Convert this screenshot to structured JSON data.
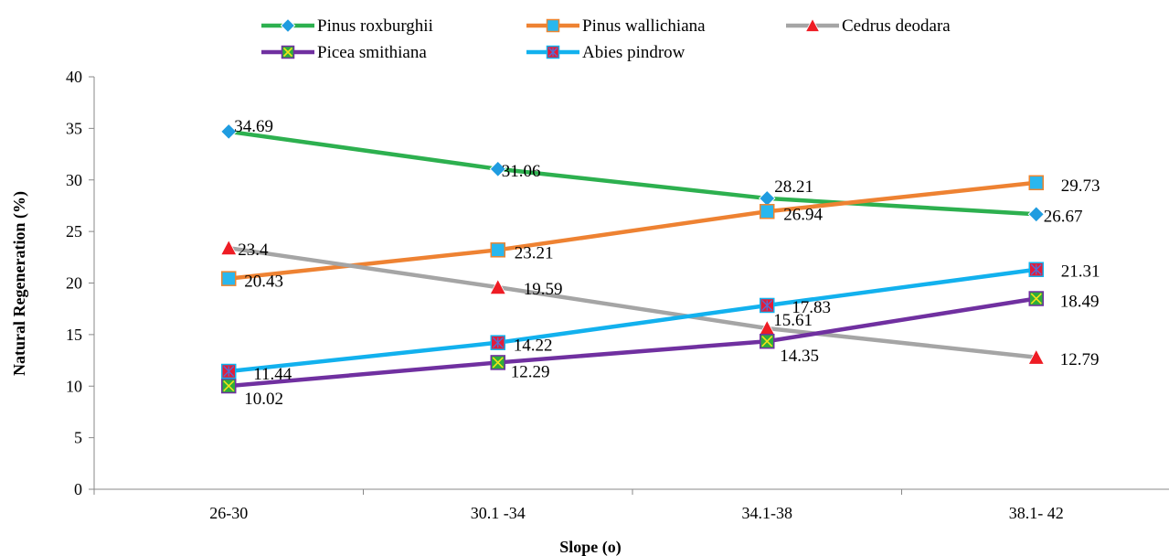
{
  "chart_data": {
    "type": "line",
    "xlabel": "Slope (o)",
    "ylabel": "Natural Regeneration (%)",
    "categories": [
      "26-30",
      "30.1 -34",
      "34.1-38",
      "38.1- 42"
    ],
    "ylim": [
      0,
      40
    ],
    "yticks": [
      0,
      5,
      10,
      15,
      20,
      25,
      30,
      35,
      40
    ],
    "grid": false,
    "legend": "top-center",
    "series": [
      {
        "name": "Pinus roxburghii",
        "values": [
          34.69,
          31.06,
          28.21,
          26.67
        ],
        "line_color": "#2db04f",
        "marker": "diamond",
        "marker_color": "#1f9ce0"
      },
      {
        "name": "Pinus wallichiana",
        "values": [
          20.43,
          23.21,
          26.94,
          29.73
        ],
        "line_color": "#ee8232",
        "marker": "square",
        "marker_color": "#29b7ee"
      },
      {
        "name": "Cedrus deodara",
        "values": [
          23.4,
          19.59,
          15.61,
          12.79
        ],
        "line_color": "#a5a5a5",
        "marker": "triangle",
        "marker_color": "#ee1c24"
      },
      {
        "name": "Picea smithiana",
        "values": [
          10.02,
          12.29,
          14.35,
          18.49
        ],
        "line_color": "#7030a0",
        "marker": "square-x",
        "marker_color": "#2dad3a"
      },
      {
        "name": "Abies pindrow",
        "values": [
          11.44,
          14.22,
          17.83,
          21.31
        ],
        "line_color": "#12b1ee",
        "marker": "square-star",
        "marker_color": "#e21c3a"
      }
    ]
  }
}
